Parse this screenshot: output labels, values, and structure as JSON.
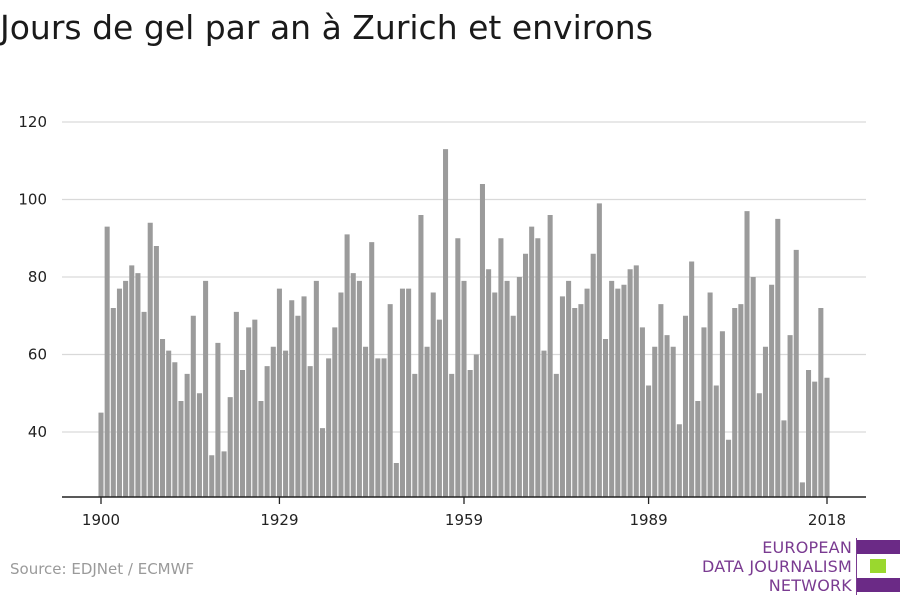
{
  "title": "Jours de gel par an à Zurich et environs",
  "source": "Source: EDJNet / ECMWF",
  "logo": {
    "lines": [
      "EUROPEAN",
      "DATA JOURNALISM",
      "NETWORK"
    ],
    "colors": [
      "#6b2a86",
      "#9ad82e",
      "#6b2a86"
    ]
  },
  "colors": {
    "bar": "#9b9b9b",
    "grid": "#d9d9d9",
    "axis": "#222222"
  },
  "chart_data": {
    "type": "bar",
    "x_start": 1900,
    "x_end": 2018,
    "xticks": [
      1900,
      1929,
      1959,
      1989,
      2018
    ],
    "yticks": [
      40,
      60,
      80,
      100,
      120
    ],
    "ylim": [
      23,
      123
    ],
    "grid": true,
    "x": [
      1900,
      1901,
      1902,
      1903,
      1904,
      1905,
      1906,
      1907,
      1908,
      1909,
      1910,
      1911,
      1912,
      1913,
      1914,
      1915,
      1916,
      1917,
      1918,
      1919,
      1920,
      1921,
      1922,
      1923,
      1924,
      1925,
      1926,
      1927,
      1928,
      1929,
      1930,
      1931,
      1932,
      1933,
      1934,
      1935,
      1936,
      1937,
      1938,
      1939,
      1940,
      1941,
      1942,
      1943,
      1944,
      1945,
      1946,
      1947,
      1948,
      1949,
      1950,
      1951,
      1952,
      1953,
      1954,
      1955,
      1956,
      1957,
      1958,
      1959,
      1960,
      1961,
      1962,
      1963,
      1964,
      1965,
      1966,
      1967,
      1968,
      1969,
      1970,
      1971,
      1972,
      1973,
      1974,
      1975,
      1976,
      1977,
      1978,
      1979,
      1980,
      1981,
      1982,
      1983,
      1984,
      1985,
      1986,
      1987,
      1988,
      1989,
      1990,
      1991,
      1992,
      1993,
      1994,
      1995,
      1996,
      1997,
      1998,
      1999,
      2000,
      2001,
      2002,
      2003,
      2004,
      2005,
      2006,
      2007,
      2008,
      2009,
      2010,
      2011,
      2012,
      2013,
      2014,
      2015,
      2016,
      2017,
      2018
    ],
    "values": [
      45,
      93,
      72,
      77,
      79,
      83,
      81,
      71,
      94,
      88,
      64,
      61,
      58,
      48,
      55,
      70,
      50,
      79,
      34,
      63,
      35,
      49,
      71,
      56,
      67,
      69,
      48,
      57,
      62,
      77,
      61,
      74,
      70,
      75,
      57,
      79,
      41,
      59,
      67,
      76,
      91,
      81,
      79,
      62,
      89,
      59,
      59,
      73,
      32,
      77,
      77,
      55,
      96,
      62,
      76,
      69,
      113,
      55,
      90,
      79,
      56,
      60,
      104,
      82,
      76,
      90,
      79,
      70,
      80,
      86,
      93,
      90,
      61,
      96,
      55,
      75,
      79,
      72,
      73,
      77,
      86,
      99,
      64,
      79,
      77,
      78,
      82,
      83,
      67,
      52,
      62,
      73,
      65,
      62,
      42,
      70,
      84,
      48,
      67,
      76,
      52,
      66,
      38,
      72,
      73,
      97,
      80,
      50,
      62,
      78,
      95,
      43,
      65,
      87,
      27,
      56,
      53,
      72,
      54
    ]
  }
}
